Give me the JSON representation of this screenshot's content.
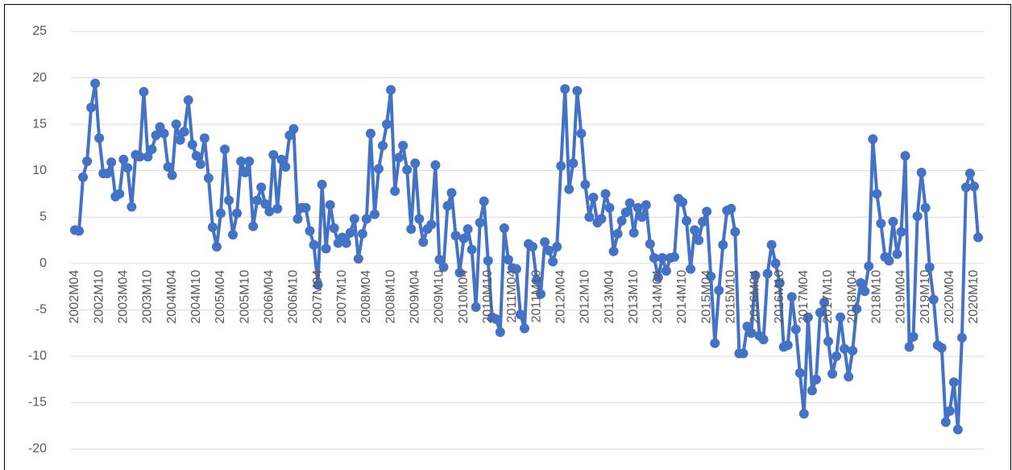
{
  "chart_data": {
    "type": "line",
    "categories": [
      "2002M04",
      null,
      null,
      null,
      null,
      null,
      "2002M10",
      null,
      null,
      null,
      null,
      null,
      "2003M04",
      null,
      null,
      null,
      null,
      null,
      "2003M10",
      null,
      null,
      null,
      null,
      null,
      "2004M04",
      null,
      null,
      null,
      null,
      null,
      "2004M10",
      null,
      null,
      null,
      null,
      null,
      "2005M04",
      null,
      null,
      null,
      null,
      null,
      "2005M10",
      null,
      null,
      null,
      null,
      null,
      "2006M04",
      null,
      null,
      null,
      null,
      null,
      "2006M10",
      null,
      null,
      null,
      null,
      null,
      "2007M04",
      null,
      null,
      null,
      null,
      null,
      "2007M10",
      null,
      null,
      null,
      null,
      null,
      "2008M04",
      null,
      null,
      null,
      null,
      null,
      "2008M10",
      null,
      null,
      null,
      null,
      null,
      "2009M04",
      null,
      null,
      null,
      null,
      null,
      "2009M10",
      null,
      null,
      null,
      null,
      null,
      "2010M04",
      null,
      null,
      null,
      null,
      null,
      "2010M10",
      null,
      null,
      null,
      null,
      null,
      "2011M04",
      null,
      null,
      null,
      null,
      null,
      "2011M10",
      null,
      null,
      null,
      null,
      null,
      "2012M04",
      null,
      null,
      null,
      null,
      null,
      "2012M10",
      null,
      null,
      null,
      null,
      null,
      "2013M04",
      null,
      null,
      null,
      null,
      null,
      "2013M10",
      null,
      null,
      null,
      null,
      null,
      "2014M04",
      null,
      null,
      null,
      null,
      null,
      "2014M10",
      null,
      null,
      null,
      null,
      null,
      "2015M04",
      null,
      null,
      null,
      null,
      null,
      "2015M10",
      null,
      null,
      null,
      null,
      null,
      "2016M04",
      null,
      null,
      null,
      null,
      null,
      "2016M10",
      null,
      null,
      null,
      null,
      null,
      "2017M04",
      null,
      null,
      null,
      null,
      null,
      "2017M10",
      null,
      null,
      null,
      null,
      null,
      "2018M04",
      null,
      null,
      null,
      null,
      null,
      "2018M10",
      null,
      null,
      null,
      null,
      null,
      "2019M04",
      null,
      null,
      null,
      null,
      null,
      "2019M10",
      null,
      null,
      null,
      null,
      null,
      "2020M04",
      null,
      null,
      null,
      null,
      null,
      "2020M10",
      null
    ],
    "values": [
      3.6,
      3.5,
      9.3,
      11.0,
      16.8,
      19.4,
      13.5,
      9.7,
      9.7,
      10.9,
      7.2,
      7.5,
      11.2,
      10.3,
      6.1,
      11.7,
      11.5,
      18.5,
      11.5,
      12.3,
      13.8,
      14.7,
      14.0,
      10.4,
      9.5,
      15.0,
      13.3,
      14.2,
      17.6,
      12.8,
      11.6,
      10.7,
      13.5,
      9.2,
      3.9,
      1.8,
      5.4,
      12.3,
      6.8,
      3.1,
      5.4,
      11.0,
      9.8,
      11.0,
      4.0,
      6.8,
      8.2,
      6.4,
      5.6,
      11.7,
      5.9,
      11.2,
      10.4,
      13.8,
      14.5,
      4.8,
      6.0,
      6.0,
      3.5,
      2.0,
      -2.3,
      8.5,
      1.6,
      6.3,
      3.8,
      2.2,
      2.8,
      2.2,
      3.3,
      4.8,
      0.5,
      3.2,
      4.8,
      14.0,
      5.3,
      10.2,
      12.7,
      15.0,
      18.7,
      7.8,
      11.4,
      12.7,
      10.1,
      3.7,
      10.8,
      4.8,
      2.3,
      3.7,
      4.2,
      10.6,
      0.4,
      -0.4,
      6.2,
      7.6,
      3.0,
      -1.0,
      2.7,
      3.7,
      1.5,
      -4.7,
      4.4,
      6.7,
      0.3,
      -5.8,
      -6.0,
      -7.4,
      3.8,
      0.4,
      -0.5,
      -0.6,
      -5.5,
      -7.0,
      2.1,
      1.8,
      -1.8,
      -3.3,
      2.3,
      1.4,
      0.2,
      1.8,
      10.5,
      18.8,
      8.0,
      10.8,
      18.6,
      14.0,
      8.5,
      5.0,
      7.1,
      4.4,
      4.8,
      7.5,
      6.0,
      1.3,
      3.2,
      4.6,
      5.5,
      6.5,
      3.3,
      6.0,
      5.0,
      6.3,
      2.1,
      0.6,
      -1.5,
      0.6,
      -0.8,
      0.6,
      0.7,
      7.0,
      6.6,
      4.6,
      -0.6,
      3.6,
      2.5,
      4.5,
      5.6,
      -1.4,
      -8.6,
      -2.9,
      2.0,
      5.7,
      5.9,
      3.4,
      -9.7,
      -9.7,
      -6.8,
      -7.5,
      -1.3,
      -7.8,
      -8.2,
      -1.1,
      2.0,
      0.0,
      -2.1,
      -9.0,
      -8.8,
      -3.6,
      -7.1,
      -11.8,
      -16.2,
      -5.8,
      -13.7,
      -12.5,
      -5.3,
      -4.2,
      -8.4,
      -11.9,
      -10.0,
      -5.8,
      -9.2,
      -12.2,
      -9.4,
      -4.9,
      -2.1,
      -3.0,
      -0.3,
      13.4,
      7.5,
      4.3,
      0.7,
      0.3,
      4.5,
      1.0,
      3.4,
      11.6,
      -9.0,
      -7.9,
      5.1,
      9.8,
      6.0,
      -0.4,
      -3.9,
      -8.8,
      -9.1,
      -17.1,
      -15.9,
      -12.8,
      -17.9,
      -8.0,
      8.2,
      9.7,
      8.3,
      2.8
    ],
    "color": "#4472c4",
    "ylim": [
      -20,
      25
    ],
    "yticks": [
      -20,
      -15,
      -10,
      -5,
      0,
      5,
      10,
      15,
      20,
      25
    ],
    "grid": true
  }
}
